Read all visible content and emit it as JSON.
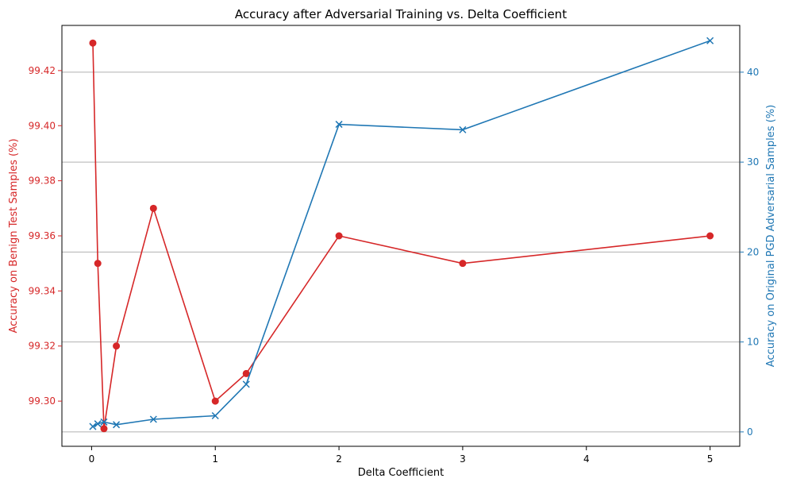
{
  "chart_data": {
    "type": "line",
    "title": "Accuracy after Adversarial Training vs. Delta Coefficient",
    "xlabel": "Delta Coefficient",
    "ylabel_left": "Accuracy on Benign Test Samples (%)",
    "ylabel_right": "Accuracy on Original PGD Adversarial Samples (%)",
    "xlim": [
      -0.24,
      5.24
    ],
    "ylim_left": [
      99.2836,
      99.4364
    ],
    "ylim_right": [
      -1.6,
      45.2
    ],
    "xticks": [
      0,
      1,
      2,
      3,
      4,
      5
    ],
    "yticks_left": [
      "99.30",
      "99.32",
      "99.34",
      "99.36",
      "99.38",
      "99.40",
      "99.42"
    ],
    "yticks_right": [
      0,
      10,
      20,
      30,
      40
    ],
    "grid": "horizontal, right axis",
    "colors": {
      "left": "#d62728",
      "right": "#1f77b4",
      "grid": "#b0b0b0"
    },
    "series": [
      {
        "axis": "left",
        "marker": "circle",
        "x": [
          0.01,
          0.05,
          0.1,
          0.2,
          0.5,
          1,
          1.25,
          2,
          3,
          5
        ],
        "values": [
          99.43,
          99.35,
          99.29,
          99.32,
          99.37,
          99.3,
          99.31,
          99.36,
          99.35,
          99.36
        ]
      },
      {
        "axis": "right",
        "marker": "x",
        "x": [
          0.01,
          0.05,
          0.1,
          0.2,
          0.5,
          1,
          1.25,
          2,
          3,
          5
        ],
        "values": [
          0.6,
          0.9,
          1.1,
          0.8,
          1.4,
          1.8,
          5.3,
          34.2,
          33.6,
          43.5
        ]
      }
    ]
  }
}
